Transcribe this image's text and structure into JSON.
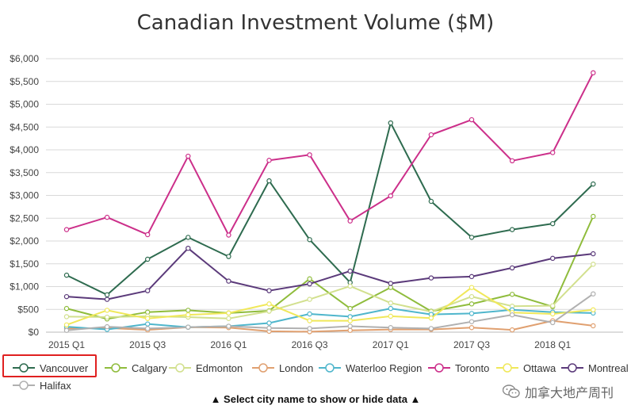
{
  "chart_data": {
    "type": "line",
    "title": "Canadian Investment Volume ($M)",
    "x": [
      "2015 Q1",
      "2015 Q2",
      "2015 Q3",
      "2015 Q4",
      "2016 Q1",
      "2016 Q2",
      "2016 Q3",
      "2016 Q4",
      "2017 Q1",
      "2017 Q2",
      "2017 Q3",
      "2017 Q4",
      "2018 Q1",
      "2018 Q2"
    ],
    "x_tick_labels": [
      "2015 Q1",
      "",
      "2015 Q3",
      "",
      "2016 Q1",
      "",
      "2016 Q3",
      "",
      "2017 Q1",
      "",
      "2017 Q3",
      "",
      "2018 Q1",
      ""
    ],
    "y_tick_labels": [
      "$0",
      "$500",
      "$1,000",
      "$1,500",
      "$2,000",
      "$2,500",
      "$3,000",
      "$3,500",
      "$4,000",
      "$4,500",
      "$5,000",
      "$5,500",
      "$6,000"
    ],
    "ylim": [
      0,
      6000
    ],
    "grid": true,
    "legend_position": "bottom",
    "series": [
      {
        "name": "Vancouver",
        "color": "#2e6b4f",
        "values": [
          1250,
          820,
          1600,
          2080,
          1660,
          3320,
          2030,
          1090,
          4590,
          2870,
          2080,
          2250,
          2380,
          3250
        ]
      },
      {
        "name": "Calgary",
        "color": "#8fbc3c",
        "values": [
          520,
          290,
          440,
          480,
          420,
          470,
          1170,
          520,
          980,
          460,
          620,
          830,
          560,
          2540
        ]
      },
      {
        "name": "Edmonton",
        "color": "#d2e08e",
        "values": [
          340,
          330,
          350,
          330,
          300,
          460,
          720,
          1010,
          640,
          450,
          780,
          570,
          580,
          1490
        ]
      },
      {
        "name": "London",
        "color": "#e0a070",
        "values": [
          80,
          90,
          50,
          110,
          100,
          20,
          10,
          40,
          60,
          60,
          100,
          50,
          250,
          140
        ]
      },
      {
        "name": "Waterloo Region",
        "color": "#4fb6cc",
        "values": [
          120,
          60,
          180,
          110,
          130,
          200,
          400,
          340,
          520,
          390,
          410,
          490,
          440,
          420
        ]
      },
      {
        "name": "Toronto",
        "color": "#cc2f8a",
        "values": [
          2250,
          2520,
          2140,
          3860,
          2130,
          3770,
          3890,
          2440,
          2990,
          4330,
          4660,
          3760,
          3940,
          5690
        ]
      },
      {
        "name": "Ottawa",
        "color": "#f0e85a",
        "values": [
          160,
          480,
          300,
          380,
          420,
          620,
          250,
          250,
          350,
          310,
          980,
          430,
          400,
          490
        ]
      },
      {
        "name": "Montreal",
        "color": "#5b3a7a",
        "values": [
          780,
          720,
          910,
          1840,
          1120,
          910,
          1060,
          1340,
          1070,
          1190,
          1220,
          1410,
          1620,
          1720
        ]
      },
      {
        "name": "Halifax",
        "color": "#b0b0b0",
        "values": [
          40,
          120,
          80,
          110,
          130,
          90,
          80,
          130,
          100,
          80,
          230,
          380,
          210,
          840
        ]
      }
    ]
  },
  "hint_text": "▲ Select city name to show or hide data ▲",
  "watermark_text": "加拿大地产周刊",
  "watermark_icon": "wechat-icon"
}
